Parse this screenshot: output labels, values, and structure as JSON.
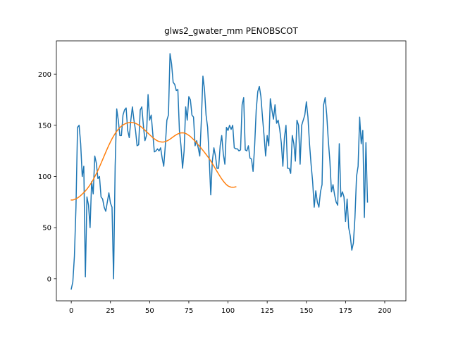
{
  "chart_data": {
    "type": "line",
    "title": "glws2_gwater_mm PENOBSCOT",
    "xlabel": "",
    "ylabel": "",
    "xlim": [
      -9.5,
      213.5
    ],
    "ylim": [
      -21.5,
      232.5
    ],
    "xticks": [
      0,
      25,
      50,
      75,
      100,
      125,
      150,
      175,
      200
    ],
    "yticks": [
      0,
      50,
      100,
      150,
      200
    ],
    "grid": false,
    "legend": "none",
    "series": [
      {
        "color": "#1f77b4",
        "values": [
          -10,
          -3,
          22,
          70,
          148,
          150,
          132,
          100,
          110,
          2,
          80,
          72,
          50,
          95,
          83,
          120,
          113,
          98,
          100,
          80,
          78,
          70,
          66,
          75,
          84,
          74,
          70,
          0,
          110,
          166,
          155,
          140,
          140,
          160,
          165,
          167,
          145,
          138,
          155,
          168,
          155,
          145,
          130,
          131,
          165,
          168,
          150,
          135,
          140,
          180,
          155,
          160,
          142,
          124,
          125,
          127,
          125,
          128,
          118,
          110,
          130,
          155,
          160,
          220,
          210,
          192,
          190,
          184,
          185,
          145,
          130,
          108,
          125,
          168,
          155,
          178,
          175,
          160,
          158,
          130,
          135,
          128,
          120,
          155,
          198,
          185,
          160,
          148,
          118,
          82,
          115,
          128,
          120,
          108,
          108,
          130,
          140,
          122,
          112,
          148,
          145,
          150,
          146,
          150,
          128,
          127,
          127,
          125,
          126,
          170,
          177,
          126,
          125,
          130,
          118,
          117,
          105,
          130,
          165,
          183,
          188,
          178,
          158,
          140,
          120,
          140,
          130,
          176,
          165,
          156,
          170,
          152,
          155,
          146,
          133,
          110,
          138,
          150,
          108,
          108,
          103,
          140,
          132,
          115,
          155,
          150,
          112,
          150,
          155,
          160,
          173,
          158,
          132,
          112,
          95,
          70,
          86,
          75,
          70,
          85,
          92,
          170,
          177,
          160,
          135,
          115,
          85,
          92,
          82,
          75,
          72,
          132,
          80,
          85,
          80,
          56,
          78,
          50,
          42,
          28,
          35,
          60,
          100,
          110,
          158,
          132,
          145,
          60,
          133,
          75
        ]
      },
      {
        "color": "#ff7f0e",
        "values": [
          77,
          77,
          77.6,
          78.3,
          79,
          80.1,
          81.4,
          82.8,
          84.3,
          85.9,
          87.7,
          89.7,
          91.9,
          94.3,
          96.9,
          99.8,
          102.8,
          106,
          109.4,
          112.9,
          116.5,
          120.1,
          123.7,
          127.2,
          130.6,
          133.8,
          136.8,
          139.5,
          142,
          144.2,
          146.1,
          147.8,
          149.2,
          150.3,
          151.2,
          151.9,
          152.4,
          152.7,
          152.8,
          152.7,
          152.4,
          151.9,
          151.2,
          150.3,
          149.2,
          148,
          146.7,
          145.3,
          143.8,
          142.3,
          140.8,
          139.4,
          138,
          136.8,
          135.7,
          134.8,
          134.2,
          133.8,
          133.6,
          133.7,
          134.1,
          134.7,
          135.5,
          136.5,
          137.6,
          138.7,
          139.8,
          140.8,
          141.6,
          142.2,
          142.6,
          142.7,
          142.5,
          142,
          141.2,
          140.2,
          139,
          137.6,
          136.1,
          134.5,
          132.8,
          131,
          129.2,
          127.4,
          125.5,
          123.6,
          121.6,
          119.6,
          117.4,
          115.1,
          112.6,
          110.1,
          107.5,
          104.9,
          102.4,
          99.9,
          97.6,
          95.5,
          93.6,
          92,
          90.8,
          90,
          89.6,
          89.5,
          89.6,
          89.9
        ]
      }
    ]
  }
}
